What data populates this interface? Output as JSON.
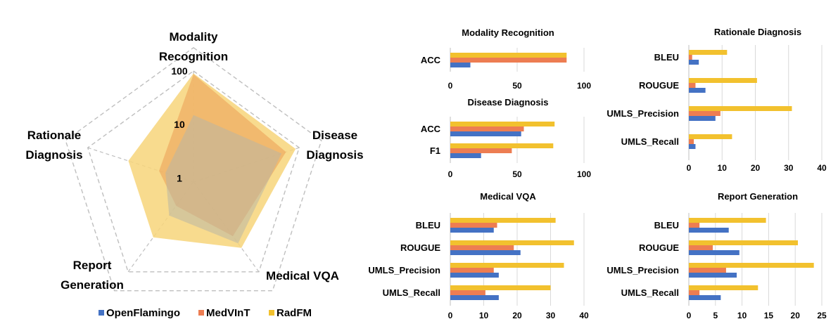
{
  "chart_data": [
    {
      "type": "radar",
      "scale": "log",
      "axes": [
        "Modality Recognition",
        "Disease Diagnosis",
        "Medical VQA",
        "Report Generation",
        "Rationale Diagnosis"
      ],
      "axis_labels": [
        [
          "Modality",
          "Recognition"
        ],
        [
          "Disease",
          "Diagnosis"
        ],
        [
          "Medical VQA"
        ],
        [
          "Report",
          "Generation"
        ],
        [
          "Rationale",
          "Diagnosis"
        ]
      ],
      "ring_labels": [
        "1",
        "10",
        "100"
      ],
      "ring_values": [
        1,
        10,
        100
      ],
      "range": [
        1,
        100
      ],
      "series": [
        {
          "name": "OpenFlamingo",
          "values": [
            15,
            45,
            22,
            5,
            3
          ]
        },
        {
          "name": "MedVInT",
          "values": [
            87,
            55,
            15,
            3,
            4
          ]
        },
        {
          "name": "RadFM",
          "values": [
            90,
            85,
            28,
            16,
            16
          ]
        }
      ]
    },
    {
      "type": "bar",
      "orientation": "horizontal",
      "title": "Modality Recognition",
      "categories": [
        "ACC"
      ],
      "xticks": [
        0,
        50,
        100
      ],
      "xlim": [
        0,
        100
      ],
      "series": [
        {
          "name": "OpenFlamingo",
          "values": [
            15
          ]
        },
        {
          "name": "MedVInT",
          "values": [
            87
          ]
        },
        {
          "name": "RadFM",
          "values": [
            87
          ]
        }
      ]
    },
    {
      "type": "bar",
      "orientation": "horizontal",
      "title": "Disease Diagnosis",
      "categories": [
        "ACC",
        "F1"
      ],
      "xticks": [
        0,
        50,
        100
      ],
      "xlim": [
        0,
        100
      ],
      "series": [
        {
          "name": "OpenFlamingo",
          "values": [
            53,
            23
          ]
        },
        {
          "name": "MedVInT",
          "values": [
            55,
            46
          ]
        },
        {
          "name": "RadFM",
          "values": [
            78,
            77
          ]
        }
      ]
    },
    {
      "type": "bar",
      "orientation": "horizontal",
      "title": "Rationale Diagnosis",
      "categories": [
        "BLEU",
        "ROUGUE",
        "UMLS_Precision",
        "UMLS_Recall"
      ],
      "xticks": [
        0,
        10,
        20,
        30,
        40
      ],
      "xlim": [
        0,
        40
      ],
      "series": [
        {
          "name": "OpenFlamingo",
          "values": [
            3,
            5,
            8,
            2
          ]
        },
        {
          "name": "MedVInT",
          "values": [
            1,
            2,
            9.5,
            1.5
          ]
        },
        {
          "name": "RadFM",
          "values": [
            11.5,
            20.5,
            31,
            13
          ]
        }
      ]
    },
    {
      "type": "bar",
      "orientation": "horizontal",
      "title": "Medical VQA",
      "categories": [
        "BLEU",
        "ROUGUE",
        "UMLS_Precision",
        "UMLS_Recall"
      ],
      "xticks": [
        0,
        10,
        20,
        30,
        40
      ],
      "xlim": [
        0,
        40
      ],
      "series": [
        {
          "name": "OpenFlamingo",
          "values": [
            13,
            21,
            14.5,
            14.5
          ]
        },
        {
          "name": "MedVInT",
          "values": [
            14,
            19,
            13,
            10.5
          ]
        },
        {
          "name": "RadFM",
          "values": [
            31.5,
            37,
            34,
            30
          ]
        }
      ]
    },
    {
      "type": "bar",
      "orientation": "horizontal",
      "title": "Report Generation",
      "categories": [
        "BLEU",
        "ROUGUE",
        "UMLS_Precision",
        "UMLS_Recall"
      ],
      "xticks": [
        0,
        5,
        10,
        15,
        20,
        25
      ],
      "xlim": [
        0,
        25
      ],
      "series": [
        {
          "name": "OpenFlamingo",
          "values": [
            7.5,
            9.5,
            9,
            6
          ]
        },
        {
          "name": "MedVInT",
          "values": [
            2,
            4.5,
            7,
            2
          ]
        },
        {
          "name": "RadFM",
          "values": [
            14.5,
            20.5,
            23.5,
            13
          ]
        }
      ]
    }
  ],
  "legend": [
    {
      "name": "OpenFlamingo",
      "color": "#4472c4"
    },
    {
      "name": "MedVInT",
      "color": "#ed7d52"
    },
    {
      "name": "RadFM",
      "color": "#f2c12e"
    }
  ],
  "colors": {
    "openflamingo": "#4472c4",
    "medvint": "#ed7d52",
    "radfm": "#f2c12e",
    "radfm_fill": "#f7d57a",
    "medvint_fill": "#eda55a",
    "openflamingo_fill": "#b9b6a4",
    "grid": "#d9d9d9",
    "axis": "#bfbfbf"
  }
}
